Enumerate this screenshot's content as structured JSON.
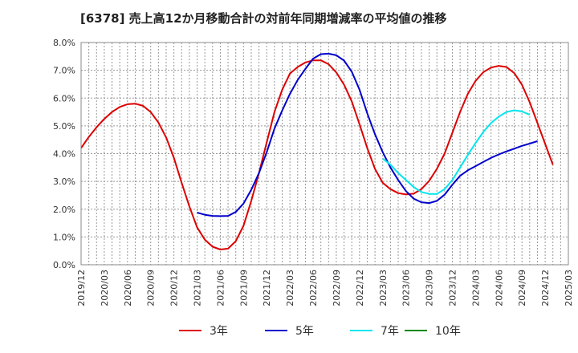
{
  "chart_data": {
    "type": "line",
    "title": "[6378]  売上高12か月移動合計の対前年同期増減率の平均値の推移",
    "x_ticks": [
      "2019/12",
      "2020/03",
      "2020/06",
      "2020/09",
      "2020/12",
      "2021/03",
      "2021/06",
      "2021/09",
      "2021/12",
      "2022/03",
      "2022/06",
      "2022/09",
      "2022/12",
      "2023/03",
      "2023/06",
      "2023/09",
      "2023/12",
      "2024/03",
      "2024/06",
      "2024/09",
      "2024/12",
      "2025/03"
    ],
    "y_ticks": [
      "0.0%",
      "1.0%",
      "2.0%",
      "3.0%",
      "4.0%",
      "5.0%",
      "6.0%",
      "7.0%",
      "8.0%"
    ],
    "ylim": [
      0,
      8
    ],
    "grid": true,
    "legend_position": "bottom",
    "series": [
      {
        "name": "3年",
        "color": "#dd0000",
        "start_index": 0,
        "values": [
          4.2,
          4.6,
          4.95,
          5.25,
          5.5,
          5.68,
          5.78,
          5.8,
          5.72,
          5.5,
          5.12,
          4.58,
          3.85,
          2.95,
          2.1,
          1.35,
          0.9,
          0.65,
          0.55,
          0.58,
          0.85,
          1.4,
          2.3,
          3.3,
          4.4,
          5.5,
          6.3,
          6.88,
          7.12,
          7.28,
          7.36,
          7.36,
          7.22,
          6.92,
          6.48,
          5.88,
          5.05,
          4.2,
          3.45,
          2.95,
          2.72,
          2.58,
          2.53,
          2.56,
          2.72,
          3.02,
          3.45,
          4.0,
          4.75,
          5.5,
          6.15,
          6.62,
          6.93,
          7.1,
          7.16,
          7.12,
          6.9,
          6.48,
          5.85,
          5.1,
          4.35,
          3.6
        ]
      },
      {
        "name": "5年",
        "color": "#0000cc",
        "start_index": 15,
        "values": [
          1.88,
          1.8,
          1.76,
          1.75,
          1.76,
          1.9,
          2.2,
          2.7,
          3.3,
          4.05,
          4.9,
          5.55,
          6.15,
          6.65,
          7.05,
          7.42,
          7.58,
          7.6,
          7.54,
          7.35,
          6.95,
          6.3,
          5.45,
          4.7,
          4.05,
          3.5,
          3.05,
          2.65,
          2.38,
          2.25,
          2.22,
          2.3,
          2.52,
          2.88,
          3.2,
          3.4,
          3.55,
          3.7,
          3.85,
          3.97,
          4.08,
          4.18,
          4.28,
          4.36,
          4.45
        ]
      },
      {
        "name": "7年",
        "color": "#00e5ee",
        "start_index": 39,
        "values": [
          3.82,
          3.6,
          3.3,
          3.05,
          2.8,
          2.62,
          2.55,
          2.55,
          2.72,
          3.05,
          3.5,
          3.95,
          4.38,
          4.78,
          5.1,
          5.33,
          5.5,
          5.56,
          5.52,
          5.4
        ]
      },
      {
        "name": "10年",
        "color": "#008800",
        "start_index": 0,
        "values": []
      }
    ]
  }
}
